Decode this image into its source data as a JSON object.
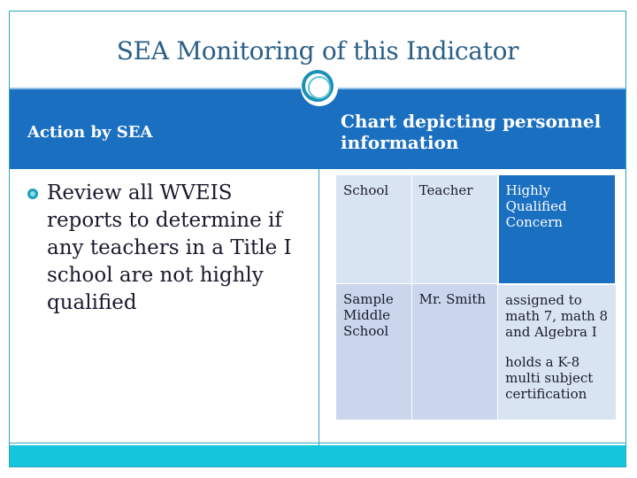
{
  "slide": {
    "title": "SEA Monitoring of this Indicator",
    "left": {
      "heading": "Action by SEA",
      "bullets": [
        "Review all WVEIS reports to determine if any teachers  in a Title I school are not highly qualified"
      ]
    },
    "right": {
      "heading": "Chart depicting personnel information",
      "table": {
        "headers": [
          "School",
          "Teacher",
          "Highly Qualified Concern"
        ],
        "rows": [
          {
            "school": "Sample Middle School",
            "teacher": "Mr. Smith",
            "concern_lines": [
              "assigned to math 7, math 8 and Algebra I",
              "holds a K-8 multi subject certification"
            ]
          }
        ]
      }
    }
  },
  "colors": {
    "title": "#2a5f86",
    "header_band": "#1a6fc0",
    "accent": "#15c5dc",
    "table_light": "#d9e4f3",
    "table_mid": "#c9d6ec"
  }
}
